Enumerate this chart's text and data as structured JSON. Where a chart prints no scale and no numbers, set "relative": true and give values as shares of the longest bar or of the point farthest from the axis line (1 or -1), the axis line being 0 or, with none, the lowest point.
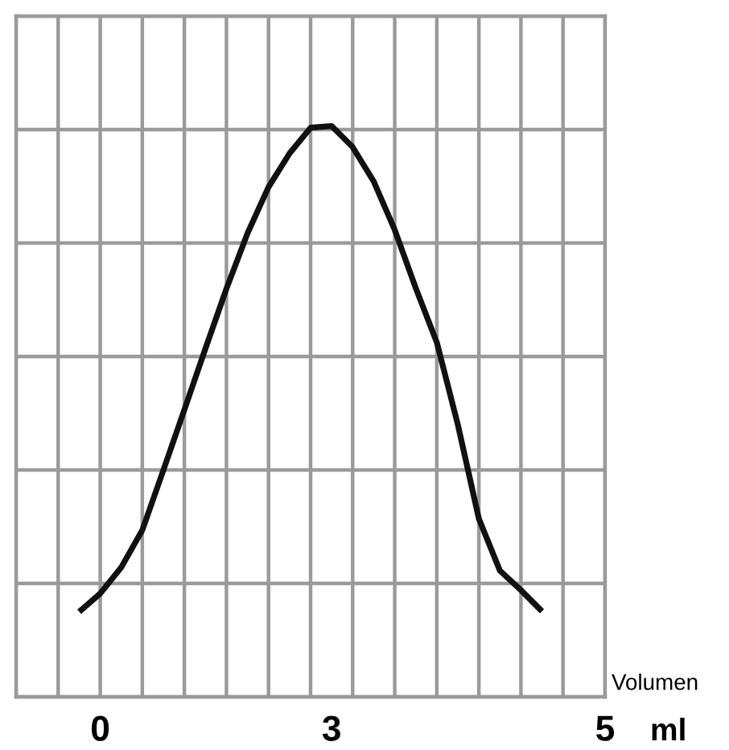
{
  "chart_data": {
    "type": "line",
    "relative": true,
    "xlabel": "Volumen",
    "annotations": [
      "ml"
    ],
    "categories": [
      null,
      null,
      null,
      null,
      "0",
      null,
      null,
      null,
      null,
      null,
      null,
      null,
      null,
      null,
      null,
      "3",
      null,
      null,
      null,
      null,
      null,
      null,
      null,
      null,
      null,
      null,
      null,
      null,
      "5"
    ],
    "series": [
      {
        "color": "#111111",
        "values": [
          null,
          null,
          null,
          0.149,
          0.181,
          0.227,
          0.292,
          0.397,
          0.503,
          0.61,
          0.715,
          0.812,
          0.893,
          0.952,
          0.997,
          1.0,
          0.963,
          0.903,
          0.818,
          0.716,
          0.621,
          0.477,
          0.312,
          0.221,
          0.187,
          0.15,
          null,
          null,
          null
        ]
      }
    ],
    "grid": true,
    "tick_labels": "x",
    "marker": "none",
    "line_style": "solid"
  }
}
